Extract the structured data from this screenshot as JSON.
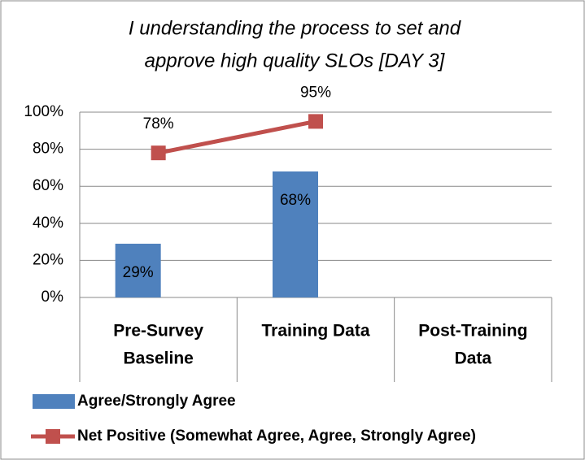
{
  "chart_data": {
    "type": "combo",
    "title": [
      "I understanding the process to set and",
      "approve high quality SLOs [DAY 3]"
    ],
    "categories": [
      [
        "Pre-Survey",
        "Baseline"
      ],
      [
        "Training Data"
      ],
      [
        "Post-Training",
        "Data"
      ]
    ],
    "series": [
      {
        "name": "Agree/Strongly Agree",
        "type": "bar",
        "color": "#4f81bd",
        "values": [
          29,
          68,
          null
        ],
        "value_labels": [
          "29%",
          "68%",
          null
        ]
      },
      {
        "name": "Net Positive (Somewhat Agree, Agree, Strongly Agree)",
        "type": "line",
        "color": "#c0504d",
        "values": [
          78,
          95,
          null
        ],
        "value_labels": [
          "78%",
          "95%",
          null
        ]
      }
    ],
    "ylim": [
      0,
      100
    ],
    "yticks": [
      {
        "value": 0,
        "label": "0%"
      },
      {
        "value": 20,
        "label": "20%"
      },
      {
        "value": 40,
        "label": "40%"
      },
      {
        "value": 60,
        "label": "60%"
      },
      {
        "value": 80,
        "label": "80%"
      },
      {
        "value": 100,
        "label": "100%"
      }
    ],
    "grid": true,
    "legend": "bottom"
  }
}
